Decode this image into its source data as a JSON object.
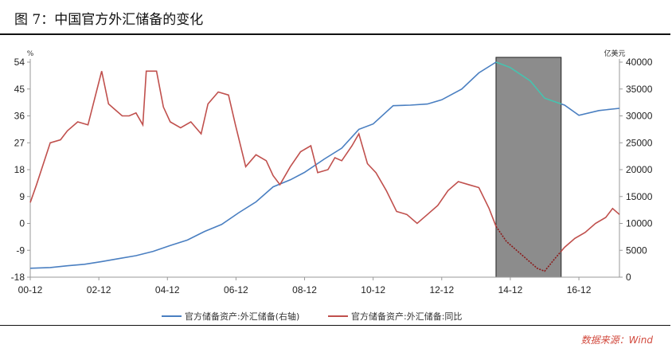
{
  "title": "图 7：中国官方外汇储备的变化",
  "source": "数据来源：Wind",
  "chart_data": {
    "type": "line",
    "left_unit": "%",
    "right_unit": "亿美元",
    "left_ticks": [
      54,
      45,
      36,
      27,
      18,
      9,
      0,
      -9,
      -18
    ],
    "right_ticks": [
      40000,
      35000,
      30000,
      25000,
      20000,
      15000,
      10000,
      5000,
      0
    ],
    "x_ticks": [
      "00-12",
      "02-12",
      "04-12",
      "06-12",
      "08-12",
      "10-12",
      "12-12",
      "14-12",
      "16-12"
    ],
    "left_range": [
      -18,
      54
    ],
    "right_range": [
      0,
      40000
    ],
    "x_range": [
      2000.917,
      2018.1
    ],
    "shaded_period": [
      2014.5,
      2016.4
    ],
    "colors": {
      "reserves": "#4a7fc1",
      "yoy": "#c0504d",
      "reserves_highlight": "#45c4b0",
      "yoy_highlight": "#8b1a1a",
      "shade": "#8c8c8c"
    },
    "series": [
      {
        "name": "官方储备资产:外汇储备(右轴)",
        "axis": "right",
        "x": [
          2000.917,
          2001.5,
          2002.0,
          2002.5,
          2003.0,
          2003.5,
          2004.0,
          2004.5,
          2005.0,
          2005.5,
          2006.0,
          2006.5,
          2007.0,
          2007.5,
          2008.0,
          2008.5,
          2008.917,
          2009.5,
          2010.0,
          2010.5,
          2010.917,
          2011.5,
          2012.0,
          2012.5,
          2012.917,
          2013.5,
          2014.0,
          2014.5,
          2014.917,
          2015.5,
          2015.917,
          2016.5,
          2016.917,
          2017.5,
          2018.1
        ],
        "values": [
          1656,
          1800,
          2120,
          2400,
          2900,
          3450,
          4000,
          4800,
          5900,
          6900,
          8500,
          9800,
          12000,
          14000,
          16800,
          18100,
          19500,
          22000,
          24000,
          27500,
          28500,
          31900,
          32000,
          32200,
          33000,
          35000,
          38000,
          40000,
          39000,
          36500,
          33300,
          32000,
          30100,
          31000,
          31400
        ]
      },
      {
        "name": "官方储备资产:外汇储备:同比",
        "axis": "left",
        "x": [
          2000.917,
          2001.1,
          2001.5,
          2001.8,
          2002.0,
          2002.3,
          2002.6,
          2002.8,
          2003.0,
          2003.2,
          2003.4,
          2003.6,
          2003.8,
          2004.0,
          2004.2,
          2004.3,
          2004.6,
          2004.8,
          2005.0,
          2005.3,
          2005.6,
          2005.9,
          2006.1,
          2006.4,
          2006.7,
          2006.9,
          2007.2,
          2007.5,
          2007.8,
          2008.0,
          2008.2,
          2008.5,
          2008.8,
          2009.1,
          2009.3,
          2009.6,
          2009.8,
          2010.0,
          2010.3,
          2010.5,
          2010.75,
          2011.0,
          2011.3,
          2011.6,
          2011.9,
          2012.2,
          2012.5,
          2012.8,
          2013.1,
          2013.4,
          2013.7,
          2014.0,
          2014.3,
          2014.5,
          2014.8,
          2015.1,
          2015.4,
          2015.7,
          2015.917,
          2016.2,
          2016.5,
          2016.8,
          2017.1,
          2017.4,
          2017.7,
          2017.9,
          2018.1
        ],
        "values": [
          7,
          13,
          27,
          28,
          31,
          34,
          33,
          42,
          51,
          40,
          38,
          36,
          36,
          37,
          33,
          51,
          51,
          39,
          34,
          32,
          34,
          30,
          40,
          44,
          43,
          33,
          19,
          23,
          21,
          16,
          13,
          19,
          24,
          26,
          17,
          18,
          22,
          21,
          26,
          30,
          20,
          17,
          11,
          4,
          3,
          0,
          3,
          6,
          11,
          14,
          13,
          12,
          5,
          -1,
          -6,
          -9,
          -12,
          -15,
          -16,
          -12,
          -8,
          -5,
          -3,
          0,
          2,
          5,
          3
        ]
      }
    ]
  }
}
